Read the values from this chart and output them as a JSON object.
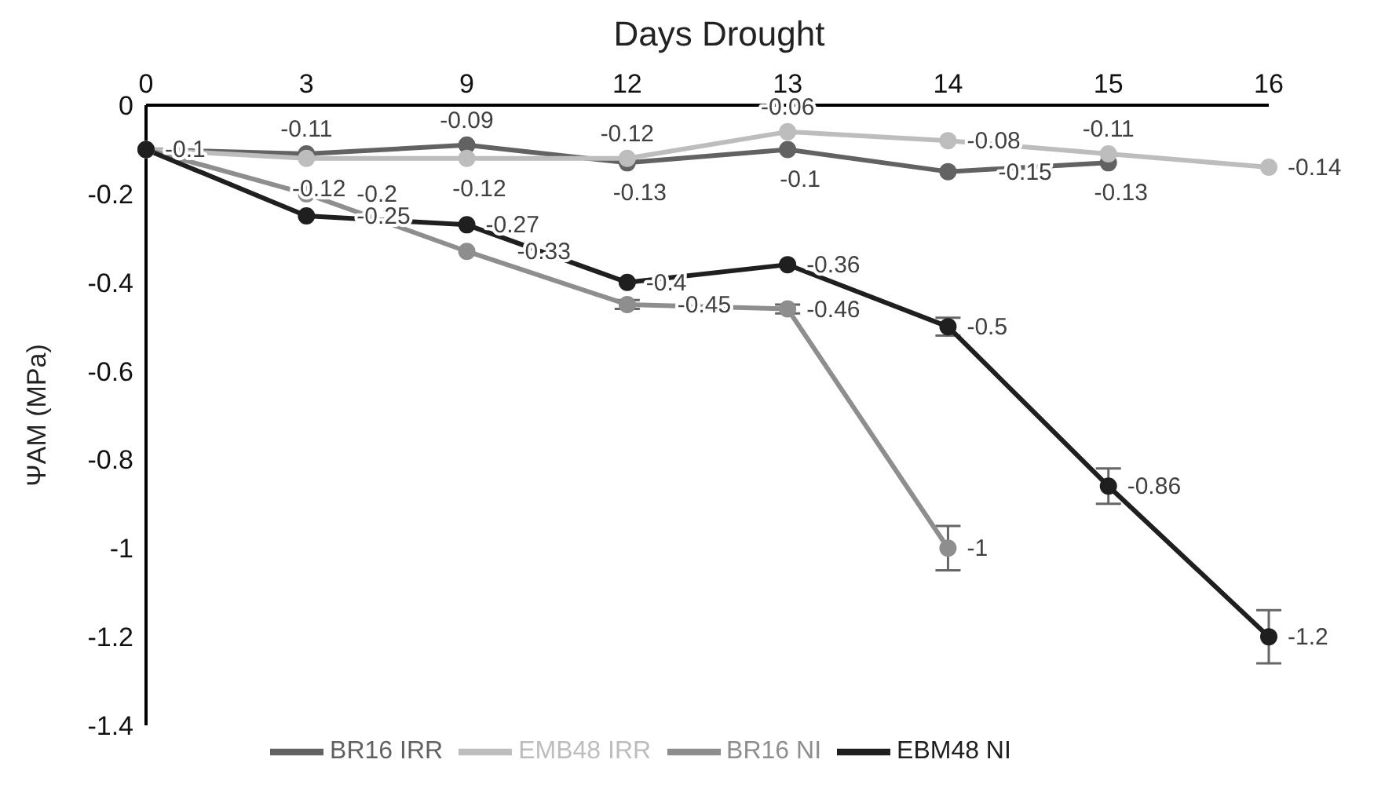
{
  "chart_data": {
    "type": "line",
    "title": "Days Drought",
    "ylabel": "ΨAM (MPa)",
    "categories": [
      "0",
      "3",
      "9",
      "12",
      "13",
      "14",
      "15",
      "16"
    ],
    "series": [
      {
        "name": "BR16 IRR",
        "color": "#626262",
        "values": [
          -0.1,
          -0.11,
          -0.09,
          -0.13,
          -0.1,
          -0.15,
          -0.13,
          null
        ],
        "value_labels": [
          "-0.1",
          "-0.11",
          "-0.09",
          "-0.13",
          "-0.1",
          "-0.15",
          "-0.13",
          null
        ]
      },
      {
        "name": "EMB48 IRR",
        "color": "#bdbdbd",
        "values": [
          -0.1,
          -0.12,
          -0.12,
          -0.12,
          -0.06,
          -0.08,
          -0.11,
          -0.14
        ],
        "value_labels": [
          null,
          "-0.12",
          "-0.12",
          "-0.12",
          "-0.06",
          "-0.08",
          "-0.11",
          "-0.14"
        ]
      },
      {
        "name": "BR16 NI",
        "color": "#8e8e8e",
        "values": [
          -0.1,
          -0.2,
          -0.33,
          -0.45,
          -0.46,
          -1,
          null,
          null
        ],
        "errors": [
          null,
          null,
          null,
          0.01,
          0.01,
          0.05,
          null,
          null
        ],
        "value_labels": [
          null,
          "-0.2",
          "-0.33",
          "-0.45",
          "-0.46",
          "-1",
          null,
          null
        ]
      },
      {
        "name": "EBM48 NI",
        "color": "#1f1f1f",
        "values": [
          -0.1,
          -0.25,
          -0.27,
          -0.4,
          -0.36,
          -0.5,
          -0.86,
          -1.2
        ],
        "errors": [
          null,
          null,
          null,
          null,
          null,
          0.02,
          0.04,
          0.06
        ],
        "value_labels": [
          null,
          "-0.25",
          "-0.27",
          "-0.4",
          "-0.36",
          "-0.5",
          "-0.86",
          "-1.2"
        ]
      }
    ],
    "ylim": [
      -1.4,
      0
    ],
    "yticks": [
      0,
      -0.2,
      -0.4,
      -0.6,
      -0.8,
      -1,
      -1.2,
      -1.4
    ],
    "legend": "bottom",
    "marker": "circle",
    "line_style": "solid"
  }
}
